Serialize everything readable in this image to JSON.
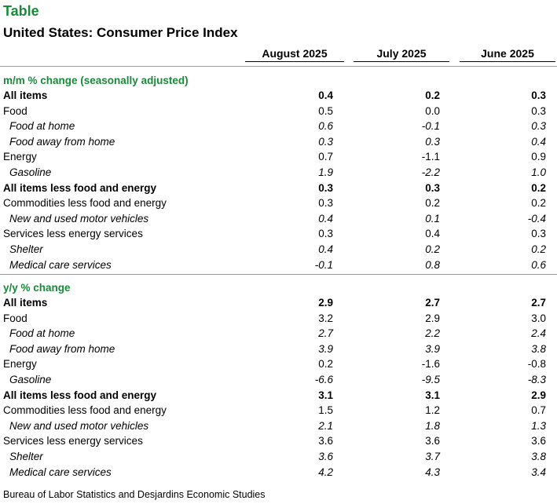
{
  "label": "Table",
  "title": "United States: Consumer Price Index",
  "columns": [
    "August 2025",
    "July 2025",
    "June 2025"
  ],
  "sections": [
    {
      "title": "m/m % change (seasonally adjusted)",
      "rows": [
        {
          "label": "All items",
          "style": "bold",
          "values": [
            "0.4",
            "0.2",
            "0.3"
          ]
        },
        {
          "label": "Food",
          "style": "normal",
          "values": [
            "0.5",
            "0.0",
            "0.3"
          ]
        },
        {
          "label": "Food at home",
          "style": "italic",
          "values": [
            "0.6",
            "-0.1",
            "0.3"
          ]
        },
        {
          "label": "Food away from home",
          "style": "italic",
          "values": [
            "0.3",
            "0.3",
            "0.4"
          ]
        },
        {
          "label": "Energy",
          "style": "normal",
          "values": [
            "0.7",
            "-1.1",
            "0.9"
          ]
        },
        {
          "label": "Gasoline",
          "style": "italic",
          "values": [
            "1.9",
            "-2.2",
            "1.0"
          ]
        },
        {
          "label": "All items less food and energy",
          "style": "bold",
          "values": [
            "0.3",
            "0.3",
            "0.2"
          ]
        },
        {
          "label": "Commodities less food and energy",
          "style": "normal",
          "values": [
            "0.3",
            "0.2",
            "0.2"
          ]
        },
        {
          "label": "New and used motor vehicles",
          "style": "italic",
          "values": [
            "0.4",
            "0.1",
            "-0.4"
          ]
        },
        {
          "label": "Services less energy services",
          "style": "normal",
          "values": [
            "0.3",
            "0.4",
            "0.3"
          ]
        },
        {
          "label": "Shelter",
          "style": "italic",
          "values": [
            "0.4",
            "0.2",
            "0.2"
          ]
        },
        {
          "label": "Medical care services",
          "style": "italic",
          "values": [
            "-0.1",
            "0.8",
            "0.6"
          ]
        }
      ]
    },
    {
      "title": "y/y % change",
      "rows": [
        {
          "label": "All items",
          "style": "bold",
          "values": [
            "2.9",
            "2.7",
            "2.7"
          ]
        },
        {
          "label": "Food",
          "style": "normal",
          "values": [
            "3.2",
            "2.9",
            "3.0"
          ]
        },
        {
          "label": "Food at home",
          "style": "italic",
          "values": [
            "2.7",
            "2.2",
            "2.4"
          ]
        },
        {
          "label": "Food away from home",
          "style": "italic",
          "values": [
            "3.9",
            "3.9",
            "3.8"
          ]
        },
        {
          "label": "Energy",
          "style": "normal",
          "values": [
            "0.2",
            "-1.6",
            "-0.8"
          ]
        },
        {
          "label": "Gasoline",
          "style": "italic",
          "values": [
            "-6.6",
            "-9.5",
            "-8.3"
          ]
        },
        {
          "label": "All items less food and energy",
          "style": "bold",
          "values": [
            "3.1",
            "3.1",
            "2.9"
          ]
        },
        {
          "label": "Commodities less food and energy",
          "style": "normal",
          "values": [
            "1.5",
            "1.2",
            "0.7"
          ]
        },
        {
          "label": "New and used motor vehicles",
          "style": "italic",
          "values": [
            "2.1",
            "1.8",
            "1.3"
          ]
        },
        {
          "label": "Services less energy services",
          "style": "normal",
          "values": [
            "3.6",
            "3.6",
            "3.6"
          ]
        },
        {
          "label": "Shelter",
          "style": "italic",
          "values": [
            "3.6",
            "3.7",
            "3.8"
          ]
        },
        {
          "label": "Medical care services",
          "style": "italic",
          "values": [
            "4.2",
            "4.3",
            "3.4"
          ]
        }
      ]
    }
  ],
  "source": "Bureau of Labor Statistics and Desjardins Economic Studies",
  "colors": {
    "accent": "#1a8a3a",
    "separator": "#9a9a9a"
  }
}
